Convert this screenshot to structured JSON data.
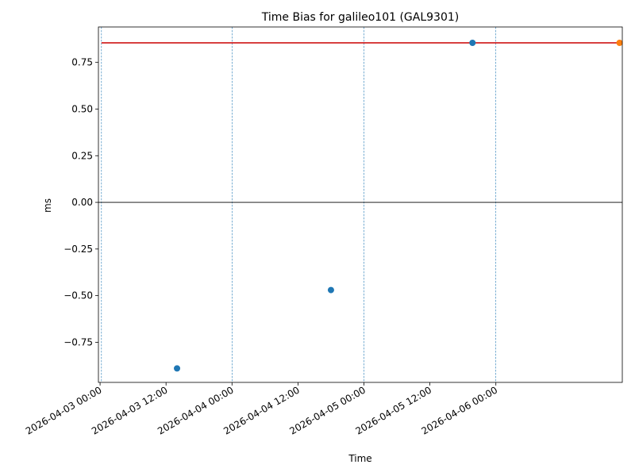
{
  "chart_data": {
    "type": "scatter",
    "title": "Time Bias for galileo101 (GAL9301)",
    "xlabel": "Time",
    "ylabel": "ms",
    "x_range": [
      "2026-04-02T23:42:00",
      "2026-04-06T23:00:00"
    ],
    "ylim": [
      -0.965,
      0.94
    ],
    "x_ticks": [
      {
        "t": "2026-04-03T00:00:00",
        "label": "2026-04-03 00:00"
      },
      {
        "t": "2026-04-03T12:00:00",
        "label": "2026-04-03 12:00"
      },
      {
        "t": "2026-04-04T00:00:00",
        "label": "2026-04-04 00:00"
      },
      {
        "t": "2026-04-04T12:00:00",
        "label": "2026-04-04 12:00"
      },
      {
        "t": "2026-04-05T00:00:00",
        "label": "2026-04-05 00:00"
      },
      {
        "t": "2026-04-05T12:00:00",
        "label": "2026-04-05 12:00"
      },
      {
        "t": "2026-04-06T00:00:00",
        "label": "2026-04-06 00:00"
      }
    ],
    "y_ticks": [
      -0.75,
      -0.5,
      -0.25,
      0.0,
      0.25,
      0.5,
      0.75
    ],
    "y_tick_labels": [
      "−0.75",
      "−0.50",
      "−0.25",
      "0.00",
      "0.25",
      "0.50",
      "0.75"
    ],
    "vlines": [
      "2026-04-03T00:15:00",
      "2026-04-04T00:00:00",
      "2026-04-05T00:00:00",
      "2026-04-06T00:00:00"
    ],
    "hline_zero": 0.0,
    "reference_line": {
      "y": 0.855,
      "x": [
        "2026-04-03T00:15:00",
        "2026-04-06T22:30:00"
      ],
      "color": "#cc0000"
    },
    "series": [
      {
        "color": "#1f77b4",
        "points": [
          {
            "x": "2026-04-03T14:00:00",
            "y": -0.89
          },
          {
            "x": "2026-04-04T18:00:00",
            "y": -0.47
          },
          {
            "x": "2026-04-05T19:45:00",
            "y": 0.855
          }
        ]
      },
      {
        "color": "#ff7f0e",
        "points": [
          {
            "x": "2026-04-06T22:30:00",
            "y": 0.855
          }
        ]
      }
    ]
  }
}
